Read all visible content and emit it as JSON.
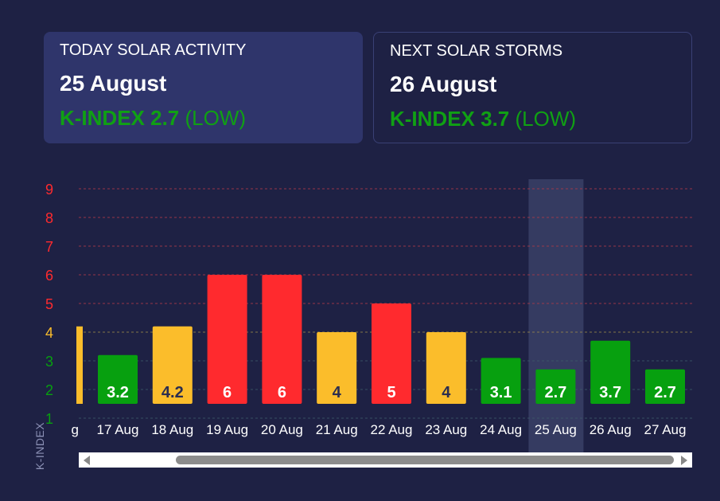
{
  "today": {
    "label": "TODAY SOLAR ACTIVITY",
    "date": "25 August",
    "k_text": "K-INDEX 2.7",
    "level": "(LOW)"
  },
  "next": {
    "label": "NEXT SOLAR STORMS",
    "date": "26 August",
    "k_text": "K-INDEX 3.7",
    "level": "(LOW)"
  },
  "colors": {
    "green": "#07a00f",
    "yellow": "#fbbd2b",
    "red": "#ff2a2e",
    "background": "#1e2144",
    "card_bg": "#2f356b"
  },
  "chart_data": {
    "type": "bar",
    "ylabel": "K-INDEX",
    "ylim": [
      1,
      9
    ],
    "yticks": [
      1,
      2,
      3,
      4,
      5,
      6,
      7,
      8,
      9
    ],
    "partial_left_label": "g",
    "partial_left_value": 4.2,
    "categories": [
      "17 Aug",
      "18 Aug",
      "19 Aug",
      "20 Aug",
      "21 Aug",
      "22 Aug",
      "23 Aug",
      "24 Aug",
      "25 Aug",
      "26 Aug",
      "27 Aug"
    ],
    "values": [
      3.2,
      4.2,
      6,
      6,
      4,
      5,
      4,
      3.1,
      2.7,
      3.7,
      2.7
    ],
    "value_labels": [
      "3.2",
      "4.2",
      "6",
      "6",
      "4",
      "5",
      "4",
      "3.1",
      "2.7",
      "3.7",
      "2.7"
    ],
    "highlighted_category": "25 Aug",
    "grid": true
  },
  "scrollbar": {
    "left_arrow": "scroll-left-arrow",
    "right_arrow": "scroll-right-arrow"
  }
}
